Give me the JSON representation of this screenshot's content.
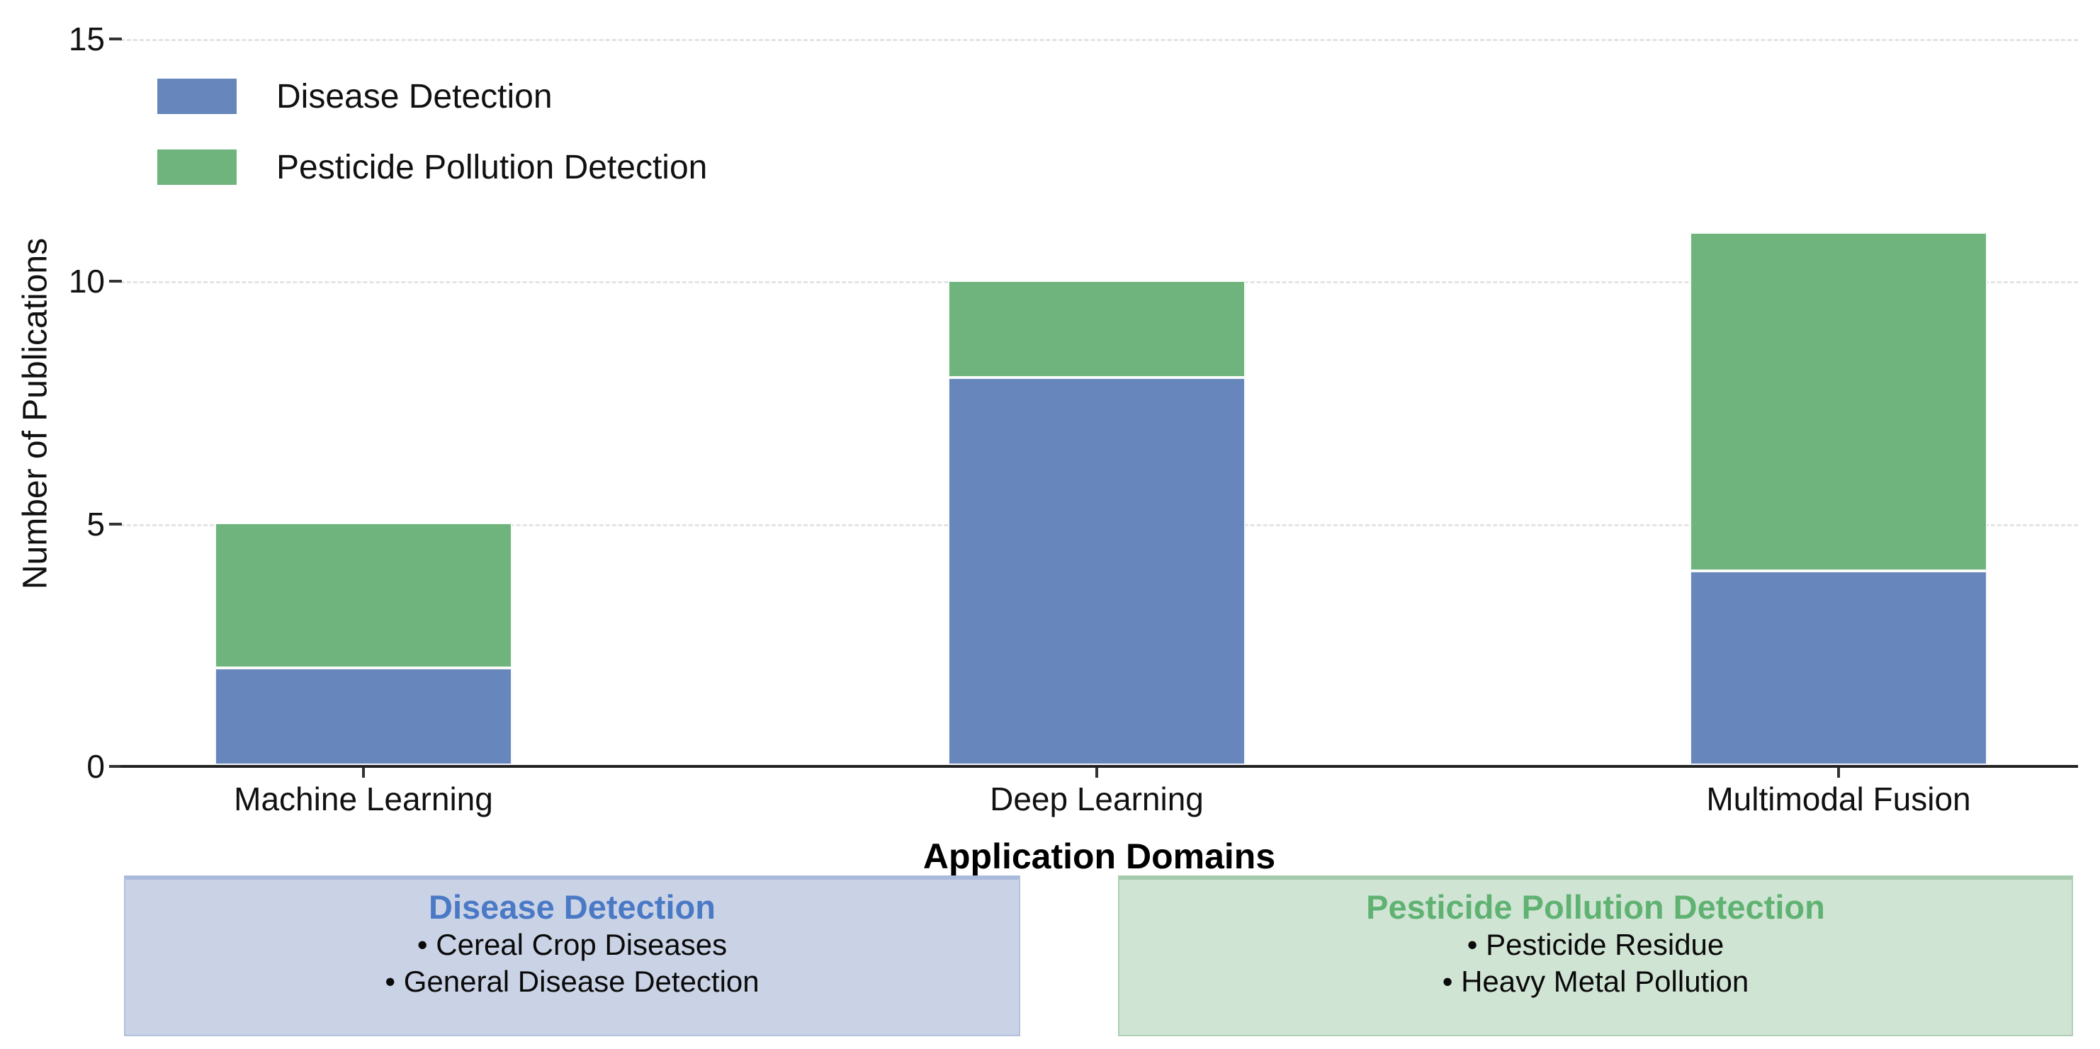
{
  "chart_data": {
    "type": "bar",
    "stacked": true,
    "xlabel": "Application Domains",
    "ylabel": "Number of Publications",
    "categories": [
      "Machine Learning",
      "Deep Learning",
      "Multimodal Fusion"
    ],
    "series": [
      {
        "name": "Disease Detection",
        "color": "#6787BC",
        "values": [
          2,
          8,
          4
        ]
      },
      {
        "name": "Pesticide Pollution Detection",
        "color": "#6FB47D",
        "values": [
          3,
          2,
          7
        ]
      }
    ],
    "totals": [
      5,
      10,
      11
    ],
    "ylim": [
      0,
      15
    ],
    "yticks": [
      "0",
      "5",
      "10",
      "15"
    ],
    "grid": {
      "axis": "y",
      "style": "dashed",
      "color": "#e4e4e4"
    },
    "legend_position": "upper left"
  },
  "annotation_boxes": [
    {
      "title": "Disease Detection",
      "title_color": "#4a79c5",
      "bg": "#cad3e6",
      "bullets": [
        "• Cereal Crop Diseases",
        "• General Disease Detection"
      ]
    },
    {
      "title": "Pesticide Pollution Detection",
      "title_color": "#5fb272",
      "bg": "#d0e4d4",
      "bullets": [
        "• Pesticide Residue",
        "• Heavy Metal Pollution"
      ]
    }
  ]
}
